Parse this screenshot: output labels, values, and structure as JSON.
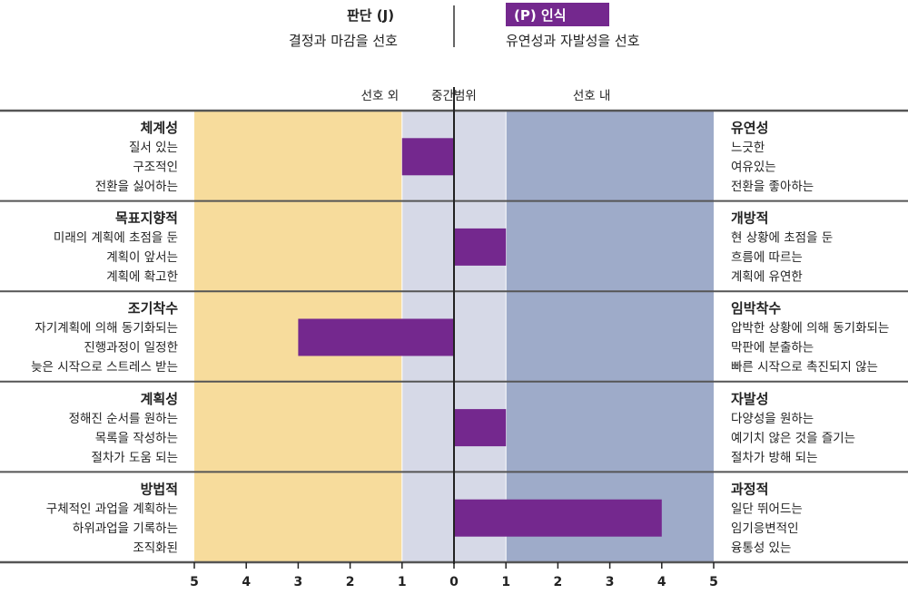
{
  "header": {
    "left_title": "판단 (J)",
    "left_subtitle": "결정과 마감을 선호",
    "right_title": "(P) 인식",
    "right_subtitle": "유연성과 자발성을 선호"
  },
  "colors": {
    "left_zone": "#f7dc9c",
    "middle_zone": "#d6d9e7",
    "right_zone": "#9eabc9",
    "bar": "#74288e",
    "divider": "#555555"
  },
  "chart_data": {
    "type": "bar",
    "orientation": "horizontal",
    "xlim": [
      -5,
      5
    ],
    "x_tick_labels": [
      "5",
      "4",
      "3",
      "2",
      "1",
      "0",
      "1",
      "2",
      "3",
      "4",
      "5"
    ],
    "zones": [
      {
        "label": "선호 외",
        "from": -5,
        "to": -1
      },
      {
        "label": "중간범위",
        "from": -1,
        "to": 1
      },
      {
        "label": "선호 내",
        "from": 1,
        "to": 5
      }
    ],
    "facets": [
      {
        "left_title": "체계성",
        "left_items": [
          "질서 있는",
          "구조적인",
          "전환을 싫어하는"
        ],
        "right_title": "유연성",
        "right_items": [
          "느긋한",
          "여유있는",
          "전환을 좋아하는"
        ],
        "value": -1
      },
      {
        "left_title": "목표지향적",
        "left_items": [
          "미래의 계획에 초점을 둔",
          "계획이 앞서는",
          "계획에 확고한"
        ],
        "right_title": "개방적",
        "right_items": [
          "현 상황에 초점을 둔",
          "흐름에 따르는",
          "계획에 유연한"
        ],
        "value": 1
      },
      {
        "left_title": "조기착수",
        "left_items": [
          "자기계획에 의해 동기화되는",
          "진행과정이 일정한",
          "늦은 시작으로 스트레스 받는"
        ],
        "right_title": "임박착수",
        "right_items": [
          "압박한 상황에 의해 동기화되는",
          "막판에 분출하는",
          "빠른 시작으로 촉진되지 않는"
        ],
        "value": -3
      },
      {
        "left_title": "계획성",
        "left_items": [
          "정해진 순서를 원하는",
          "목록을 작성하는",
          "절차가 도움 되는"
        ],
        "right_title": "자발성",
        "right_items": [
          "다양성을 원하는",
          "예기치 않은 것을 즐기는",
          "절차가 방해 되는"
        ],
        "value": 1
      },
      {
        "left_title": "방법적",
        "left_items": [
          "구체적인 과업을 계획하는",
          "하위과업을 기록하는",
          "조직화된"
        ],
        "right_title": "과정적",
        "right_items": [
          "일단 뛰어드는",
          "임기응변적인",
          "융통성 있는"
        ],
        "value": 4
      }
    ]
  }
}
